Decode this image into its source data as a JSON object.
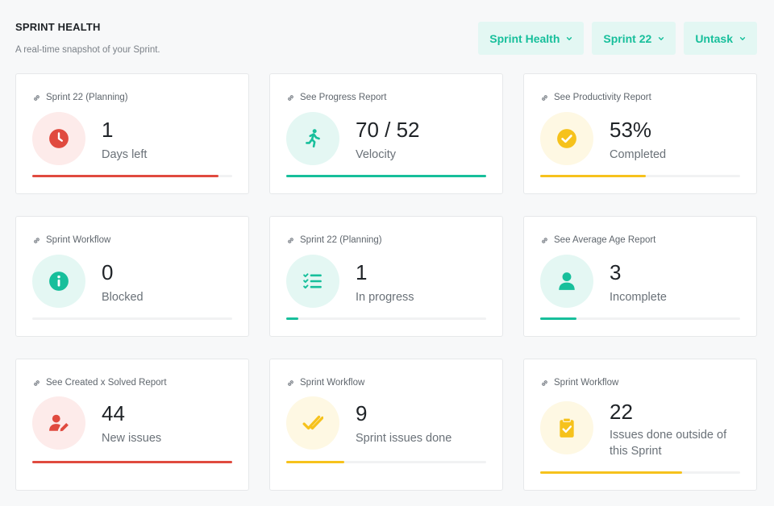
{
  "header": {
    "title": "SPRINT HEALTH",
    "subtitle": "A real-time snapshot of your Sprint."
  },
  "filters": [
    {
      "label": "Sprint Health"
    },
    {
      "label": "Sprint 22"
    },
    {
      "label": "Untask"
    }
  ],
  "colors": {
    "accent": "#17bf9b",
    "danger": "#e04a3f",
    "warning": "#f6c21c"
  },
  "cards": [
    {
      "link": "Sprint 22 (Planning)",
      "value": "1",
      "label": "Days left",
      "icon": "clock-icon",
      "tone": "red",
      "progress": 0.93
    },
    {
      "link": "See Progress Report",
      "value": "70 / 52",
      "label": "Velocity",
      "icon": "running-icon",
      "tone": "green",
      "progress": 1.0
    },
    {
      "link": "See Productivity Report",
      "value": "53%",
      "label": "Completed",
      "icon": "check-circle-icon",
      "tone": "yellow",
      "progress": 0.53
    },
    {
      "link": "Sprint Workflow",
      "value": "0",
      "label": "Blocked",
      "icon": "info-icon",
      "tone": "green",
      "progress": 0.0
    },
    {
      "link": "Sprint 22 (Planning)",
      "value": "1",
      "label": "In progress",
      "icon": "list-check-icon",
      "tone": "green",
      "progress": 0.06
    },
    {
      "link": "See Average Age Report",
      "value": "3",
      "label": "Incomplete",
      "icon": "user-icon",
      "tone": "green",
      "progress": 0.18
    },
    {
      "link": "See Created x Solved Report",
      "value": "44",
      "label": "New issues",
      "icon": "user-edit-icon",
      "tone": "red",
      "progress": 1.0
    },
    {
      "link": "Sprint Workflow",
      "value": "9",
      "label": "Sprint issues done",
      "icon": "double-check-icon",
      "tone": "yellow",
      "progress": 0.29
    },
    {
      "link": "Sprint Workflow",
      "value": "22",
      "label": "Issues done outside of this Sprint",
      "icon": "clipboard-check-icon",
      "tone": "yellow",
      "progress": 0.71
    }
  ]
}
